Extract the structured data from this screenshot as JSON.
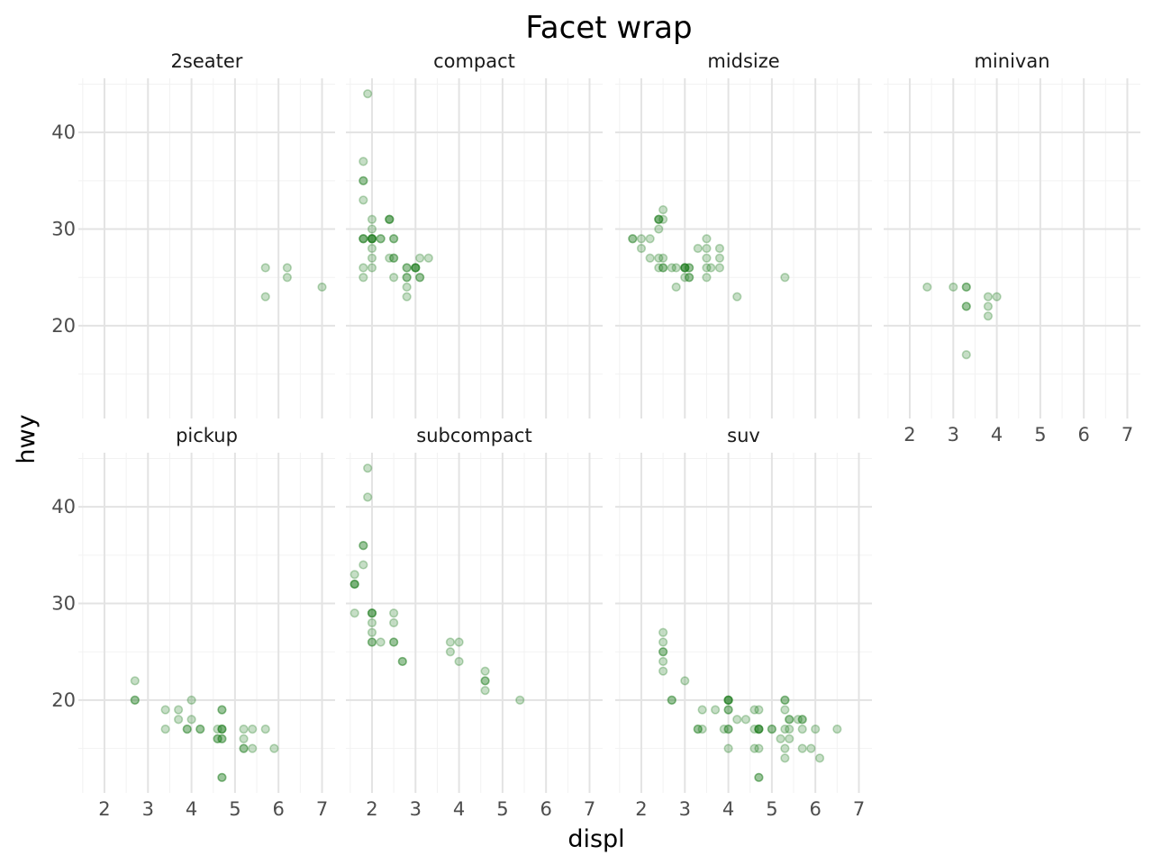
{
  "chart_data": {
    "type": "scatter",
    "title": "Facet wrap",
    "xlabel": "displ",
    "ylabel": "hwy",
    "xlim": [
      1.4,
      7.3
    ],
    "ylim": [
      10.4,
      45.6
    ],
    "xticks": [
      2,
      3,
      4,
      5,
      6,
      7
    ],
    "yticks": [
      20,
      30,
      40
    ],
    "grid": true,
    "point_color": "#1a7a1a",
    "point_alpha": 0.25,
    "facets": [
      {
        "name": "2seater",
        "points": [
          [
            5.7,
            26
          ],
          [
            5.7,
            23
          ],
          [
            6.2,
            26
          ],
          [
            6.2,
            25
          ],
          [
            7.0,
            24
          ]
        ]
      },
      {
        "name": "compact",
        "points": [
          [
            1.8,
            29
          ],
          [
            1.8,
            29
          ],
          [
            2.0,
            31
          ],
          [
            2.0,
            30
          ],
          [
            2.8,
            26
          ],
          [
            2.8,
            26
          ],
          [
            3.1,
            27
          ],
          [
            1.8,
            26
          ],
          [
            1.8,
            25
          ],
          [
            2.0,
            28
          ],
          [
            2.0,
            27
          ],
          [
            2.8,
            25
          ],
          [
            2.8,
            25
          ],
          [
            3.1,
            25
          ],
          [
            3.1,
            25
          ],
          [
            2.4,
            31
          ],
          [
            2.4,
            31
          ],
          [
            2.2,
            29
          ],
          [
            2.2,
            29
          ],
          [
            2.4,
            27
          ],
          [
            2.4,
            31
          ],
          [
            3.0,
            26
          ],
          [
            3.0,
            26
          ],
          [
            3.3,
            27
          ],
          [
            1.8,
            35
          ],
          [
            1.8,
            37
          ],
          [
            1.8,
            35
          ],
          [
            1.9,
            44
          ],
          [
            2.0,
            29
          ],
          [
            2.0,
            29
          ],
          [
            2.0,
            29
          ],
          [
            2.0,
            29
          ],
          [
            2.5,
            29
          ],
          [
            2.5,
            29
          ],
          [
            2.8,
            23
          ],
          [
            1.8,
            33
          ],
          [
            1.8,
            29
          ],
          [
            2.0,
            29
          ],
          [
            2.5,
            27
          ],
          [
            2.5,
            25
          ],
          [
            3.0,
            26
          ],
          [
            3.0,
            26
          ],
          [
            2.8,
            24
          ],
          [
            2.0,
            26
          ],
          [
            2.5,
            27
          ]
        ]
      },
      {
        "name": "midsize",
        "points": [
          [
            1.8,
            29
          ],
          [
            1.8,
            29
          ],
          [
            2.0,
            28
          ],
          [
            2.0,
            29
          ],
          [
            2.4,
            27
          ],
          [
            2.4,
            30
          ],
          [
            2.4,
            31
          ],
          [
            2.4,
            31
          ],
          [
            2.5,
            32
          ],
          [
            2.5,
            31
          ],
          [
            3.0,
            26
          ],
          [
            3.0,
            26
          ],
          [
            3.1,
            26
          ],
          [
            3.1,
            26
          ],
          [
            3.5,
            29
          ],
          [
            3.5,
            28
          ],
          [
            3.5,
            25
          ],
          [
            3.5,
            27
          ],
          [
            3.6,
            26
          ],
          [
            3.8,
            26
          ],
          [
            3.8,
            27
          ],
          [
            2.2,
            27
          ],
          [
            2.2,
            29
          ],
          [
            2.4,
            26
          ],
          [
            2.5,
            26
          ],
          [
            2.8,
            26
          ],
          [
            2.8,
            24
          ],
          [
            3.0,
            26
          ],
          [
            3.1,
            25
          ],
          [
            3.3,
            28
          ],
          [
            3.8,
            28
          ],
          [
            4.2,
            23
          ],
          [
            5.3,
            25
          ],
          [
            2.4,
            31
          ],
          [
            3.0,
            26
          ],
          [
            3.5,
            26
          ],
          [
            3.1,
            25
          ],
          [
            3.0,
            25
          ],
          [
            2.5,
            26
          ],
          [
            2.7,
            26
          ],
          [
            2.5,
            27
          ]
        ]
      },
      {
        "name": "minivan",
        "points": [
          [
            2.4,
            24
          ],
          [
            3.0,
            24
          ],
          [
            3.3,
            22
          ],
          [
            3.3,
            22
          ],
          [
            3.3,
            24
          ],
          [
            3.3,
            24
          ],
          [
            3.3,
            17
          ],
          [
            3.8,
            22
          ],
          [
            3.8,
            21
          ],
          [
            3.8,
            23
          ],
          [
            4.0,
            23
          ]
        ]
      },
      {
        "name": "pickup",
        "points": [
          [
            2.7,
            20
          ],
          [
            2.7,
            22
          ],
          [
            2.7,
            20
          ],
          [
            3.4,
            17
          ],
          [
            3.4,
            19
          ],
          [
            3.7,
            19
          ],
          [
            3.7,
            18
          ],
          [
            3.9,
            17
          ],
          [
            3.9,
            17
          ],
          [
            4.0,
            18
          ],
          [
            4.0,
            20
          ],
          [
            4.2,
            17
          ],
          [
            4.2,
            17
          ],
          [
            4.7,
            17
          ],
          [
            4.7,
            16
          ],
          [
            4.7,
            19
          ],
          [
            4.7,
            12
          ],
          [
            4.7,
            16
          ],
          [
            4.7,
            19
          ],
          [
            4.7,
            17
          ],
          [
            4.7,
            12
          ],
          [
            5.2,
            16
          ],
          [
            5.2,
            15
          ],
          [
            5.2,
            17
          ],
          [
            5.2,
            15
          ],
          [
            5.4,
            15
          ],
          [
            5.4,
            17
          ],
          [
            5.7,
            17
          ],
          [
            5.9,
            15
          ],
          [
            4.6,
            16
          ],
          [
            4.6,
            17
          ],
          [
            4.6,
            16
          ],
          [
            4.7,
            17
          ]
        ]
      },
      {
        "name": "subcompact",
        "points": [
          [
            1.6,
            32
          ],
          [
            1.6,
            32
          ],
          [
            1.6,
            29
          ],
          [
            1.6,
            32
          ],
          [
            1.6,
            33
          ],
          [
            1.8,
            34
          ],
          [
            1.8,
            36
          ],
          [
            1.8,
            36
          ],
          [
            1.9,
            44
          ],
          [
            1.9,
            41
          ],
          [
            2.0,
            29
          ],
          [
            2.0,
            26
          ],
          [
            2.0,
            28
          ],
          [
            2.0,
            27
          ],
          [
            2.0,
            29
          ],
          [
            2.0,
            26
          ],
          [
            2.0,
            29
          ],
          [
            2.2,
            26
          ],
          [
            2.5,
            29
          ],
          [
            2.5,
            28
          ],
          [
            2.5,
            26
          ],
          [
            2.5,
            26
          ],
          [
            2.7,
            24
          ],
          [
            2.7,
            24
          ],
          [
            3.8,
            26
          ],
          [
            3.8,
            25
          ],
          [
            4.0,
            26
          ],
          [
            4.0,
            24
          ],
          [
            4.6,
            21
          ],
          [
            4.6,
            22
          ],
          [
            4.6,
            23
          ],
          [
            4.6,
            22
          ],
          [
            5.4,
            20
          ]
        ]
      },
      {
        "name": "suv",
        "points": [
          [
            2.5,
            27
          ],
          [
            2.5,
            26
          ],
          [
            2.5,
            25
          ],
          [
            2.5,
            25
          ],
          [
            2.5,
            24
          ],
          [
            2.5,
            23
          ],
          [
            2.7,
            20
          ],
          [
            2.7,
            20
          ],
          [
            3.0,
            22
          ],
          [
            3.3,
            17
          ],
          [
            3.3,
            17
          ],
          [
            3.4,
            17
          ],
          [
            3.4,
            19
          ],
          [
            3.7,
            19
          ],
          [
            3.9,
            17
          ],
          [
            4.0,
            20
          ],
          [
            4.0,
            19
          ],
          [
            4.0,
            20
          ],
          [
            4.0,
            17
          ],
          [
            4.0,
            20
          ],
          [
            4.0,
            17
          ],
          [
            4.0,
            15
          ],
          [
            4.0,
            19
          ],
          [
            4.0,
            20
          ],
          [
            4.2,
            18
          ],
          [
            4.4,
            18
          ],
          [
            4.6,
            17
          ],
          [
            4.6,
            19
          ],
          [
            4.6,
            15
          ],
          [
            4.7,
            17
          ],
          [
            4.7,
            17
          ],
          [
            4.7,
            15
          ],
          [
            4.7,
            17
          ],
          [
            4.7,
            12
          ],
          [
            4.7,
            19
          ],
          [
            4.7,
            17
          ],
          [
            4.7,
            12
          ],
          [
            5.0,
            17
          ],
          [
            5.0,
            17
          ],
          [
            5.2,
            16
          ],
          [
            5.3,
            17
          ],
          [
            5.3,
            14
          ],
          [
            5.3,
            15
          ],
          [
            5.3,
            19
          ],
          [
            5.3,
            20
          ],
          [
            5.3,
            20
          ],
          [
            5.4,
            16
          ],
          [
            5.4,
            18
          ],
          [
            5.4,
            17
          ],
          [
            5.4,
            18
          ],
          [
            5.6,
            18
          ],
          [
            5.7,
            18
          ],
          [
            5.7,
            17
          ],
          [
            5.7,
            15
          ],
          [
            5.7,
            18
          ],
          [
            5.9,
            15
          ],
          [
            6.0,
            17
          ],
          [
            6.1,
            14
          ],
          [
            6.5,
            17
          ]
        ]
      }
    ]
  }
}
